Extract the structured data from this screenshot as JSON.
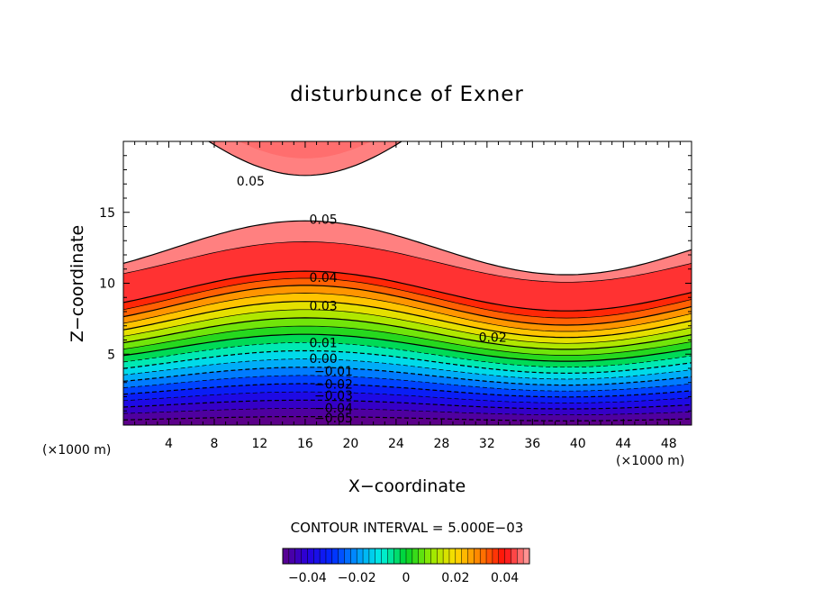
{
  "chart_data": {
    "type": "contour",
    "title": "disturbunce of Exner",
    "xlabel": "X−coordinate",
    "ylabel": "Z−coordinate",
    "x_unit_left": "(×1000 m)",
    "x_unit_right": "(×1000 m)",
    "xlim": [
      0,
      50
    ],
    "ylim": [
      0,
      20
    ],
    "x_ticks": [
      4,
      8,
      12,
      16,
      20,
      24,
      28,
      32,
      36,
      40,
      44,
      48
    ],
    "y_ticks": [
      5,
      10,
      15
    ],
    "field_min": -0.05,
    "field_max": 0.05,
    "contour_interval_label": "CONTOUR INTERVAL = 5.000E−03",
    "contour_labels": [
      {
        "text": "0.05",
        "x": 11.2,
        "z": 17.2
      },
      {
        "text": "0.05",
        "x": 17.6,
        "z": 14.5
      },
      {
        "text": "0.04",
        "x": 17.6,
        "z": 10.4
      },
      {
        "text": "0.03",
        "x": 17.6,
        "z": 8.4
      },
      {
        "text": "0.02",
        "x": 32.5,
        "z": 6.2
      },
      {
        "text": "0.01",
        "x": 17.6,
        "z": 5.8
      },
      {
        "text": "0.00",
        "x": 17.6,
        "z": 4.7
      },
      {
        "text": "−0.01",
        "x": 18.5,
        "z": 3.8
      },
      {
        "text": "−0.02",
        "x": 18.5,
        "z": 2.9
      },
      {
        "text": "−0.03",
        "x": 18.5,
        "z": 2.1
      },
      {
        "text": "−0.04",
        "x": 18.5,
        "z": 1.2
      },
      {
        "text": "−0.05",
        "x": 18.5,
        "z": 0.5
      }
    ],
    "colorbar": {
      "min": -0.05,
      "max": 0.05,
      "ticks": [
        -0.04,
        -0.02,
        0,
        0.02,
        0.04
      ],
      "tick_labels": [
        "−0.04",
        "−0.02",
        "0",
        "0.02",
        "0.04"
      ]
    }
  }
}
